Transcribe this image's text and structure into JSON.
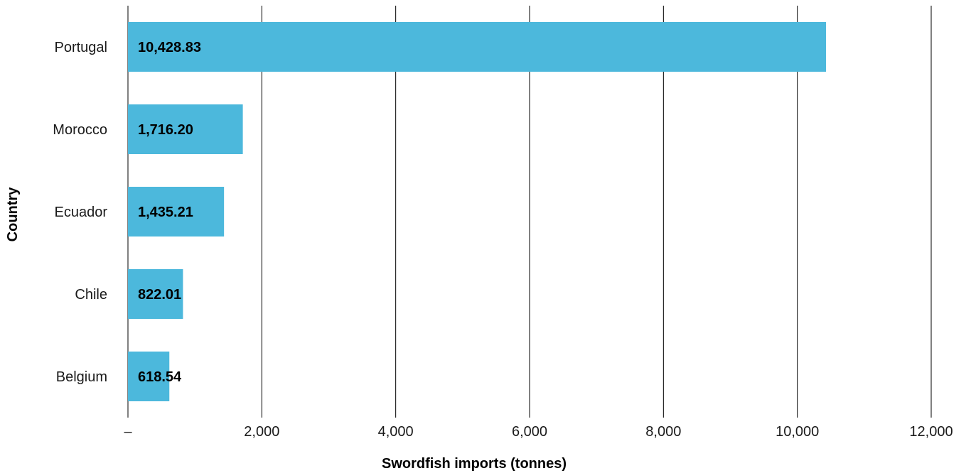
{
  "chart_data": {
    "type": "bar",
    "orientation": "horizontal",
    "categories": [
      "Portugal",
      "Morocco",
      "Ecuador",
      "Chile",
      "Belgium"
    ],
    "values": [
      10428.83,
      1716.2,
      1435.21,
      822.01,
      618.54
    ],
    "value_labels": [
      "10,428.83",
      "1,716.20",
      "1,435.21",
      "822.01",
      "618.54"
    ],
    "title": "",
    "xlabel": "Swordfish imports (tonnes)",
    "ylabel": "Country",
    "xlim": [
      0,
      12000
    ],
    "x_ticks": [
      0,
      2000,
      4000,
      6000,
      8000,
      10000,
      12000
    ],
    "x_tick_labels": [
      "–",
      "2,000",
      "4,000",
      "6,000",
      "8,000",
      "10,000",
      "12,000"
    ],
    "grid": true,
    "grid_axis": "x",
    "legend": "none",
    "bar_color": "#4cb8dc",
    "grid_color": "#000000"
  }
}
